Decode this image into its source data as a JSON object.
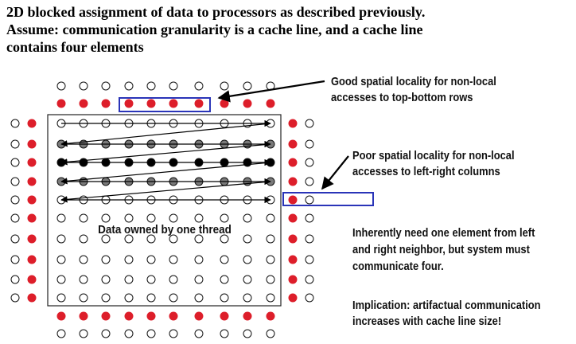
{
  "title": {
    "lines": [
      "2D blocked assignment of data to processors as described previously.",
      "Assume: communication granularity is a cache line, and a cache line",
      "contains four elements"
    ]
  },
  "diagram": {
    "block_label": "Data owned by one thread",
    "colors": {
      "ghost_fill": "#dd1e2a",
      "active_fill": "#000000",
      "visited_fill": "#7a7a7a",
      "empty_fill": "#ffffff",
      "highlight_box": "#2a34b8"
    },
    "legend_note": "circles represent grid elements"
  },
  "annotations": {
    "top_rows": [
      "Good spatial locality for non-local",
      "accesses to top-bottom rows"
    ],
    "left_right": [
      "Poor spatial locality for non-local",
      "accesses to left-right columns"
    ],
    "neighbor": [
      "Inherently need one element from left",
      "and right neighbor, but system must",
      "communicate four."
    ],
    "implication": [
      "Implication: artifactual communication",
      "increases with cache line size!"
    ]
  }
}
